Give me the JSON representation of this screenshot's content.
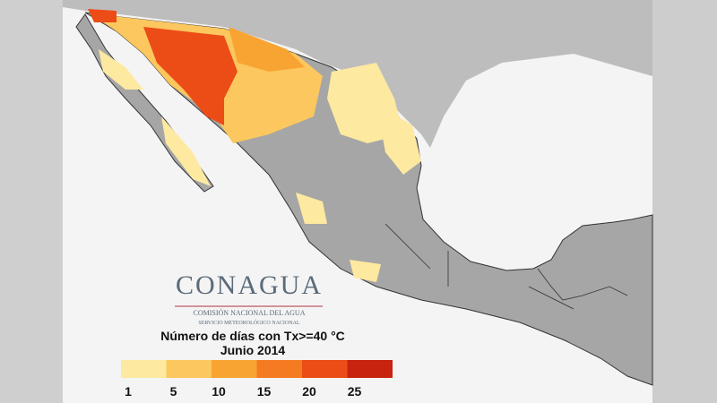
{
  "logo": {
    "name": "CONAGUA",
    "line1": "COMISIÓN NACIONAL DEL AGUA",
    "line2": "SERVICIO METEOROLÓGICO NACIONAL"
  },
  "map": {
    "title": "Número de días con Tx>=40 °C",
    "period": "Junio 2014",
    "legend": [
      {
        "label": 1,
        "color": "#fde9a0"
      },
      {
        "label": 5,
        "color": "#fbc75e"
      },
      {
        "label": 10,
        "color": "#f8a432"
      },
      {
        "label": 15,
        "color": "#f57b22"
      },
      {
        "label": 20,
        "color": "#ec4c16"
      },
      {
        "label": 25,
        "color": "#c8230f"
      }
    ]
  }
}
